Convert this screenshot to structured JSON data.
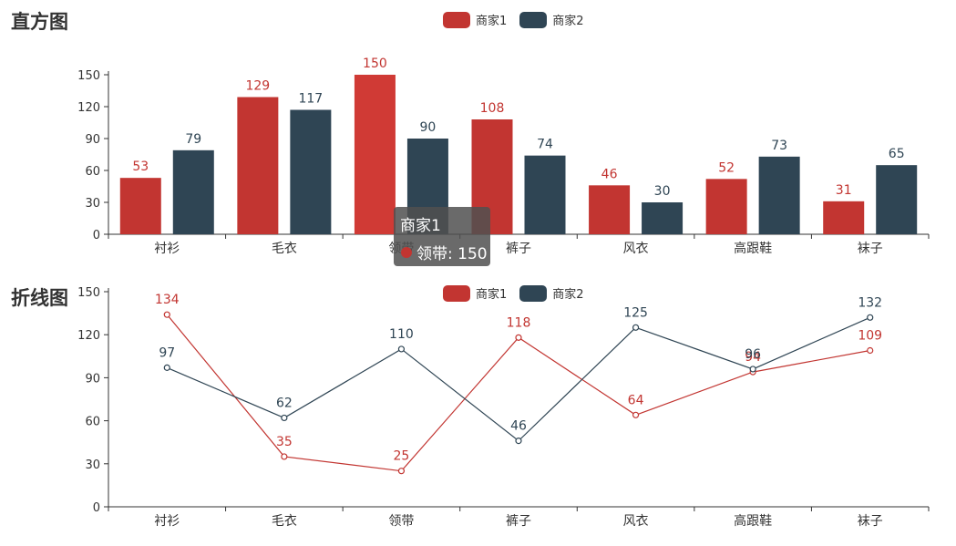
{
  "colors": {
    "series1": "#c23531",
    "series2": "#2f4554",
    "highlight": "#d03a35"
  },
  "chart_data": [
    {
      "type": "bar",
      "title": "直方图",
      "categories": [
        "衬衫",
        "毛衣",
        "领带",
        "裤子",
        "风衣",
        "高跟鞋",
        "袜子"
      ],
      "series": [
        {
          "name": "商家1",
          "values": [
            53,
            129,
            150,
            108,
            46,
            52,
            31
          ]
        },
        {
          "name": "商家2",
          "values": [
            79,
            117,
            90,
            74,
            30,
            73,
            65
          ]
        }
      ],
      "ylim": [
        0,
        150
      ],
      "yticks": [
        "0",
        "30",
        "60",
        "90",
        "120",
        "150"
      ],
      "legend_position": "top-center",
      "grid": false
    },
    {
      "type": "line",
      "title": "折线图",
      "categories": [
        "衬衫",
        "毛衣",
        "领带",
        "裤子",
        "风衣",
        "高跟鞋",
        "袜子"
      ],
      "series": [
        {
          "name": "商家1",
          "values": [
            134,
            35,
            25,
            118,
            64,
            94,
            109
          ]
        },
        {
          "name": "商家2",
          "values": [
            97,
            62,
            110,
            46,
            125,
            96,
            132
          ]
        }
      ],
      "ylim": [
        0,
        150
      ],
      "yticks": [
        "0",
        "30",
        "60",
        "90",
        "120",
        "150"
      ],
      "legend_position": "top-center",
      "grid": false
    }
  ],
  "tooltip": {
    "series": "商家1",
    "text": "领带: 150"
  }
}
